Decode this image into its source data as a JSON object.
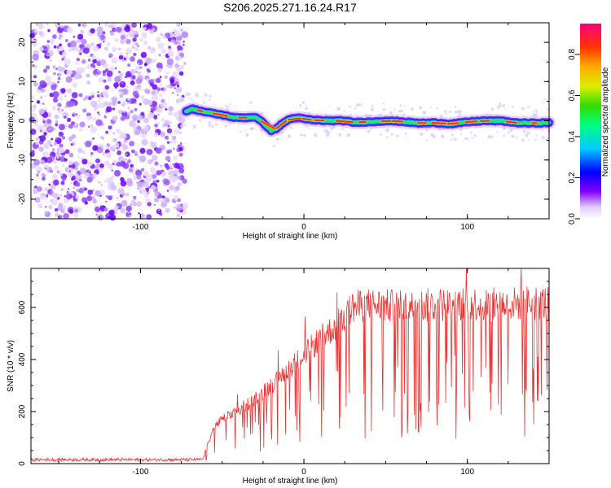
{
  "title": "S206.2025.271.16.24.R17",
  "chart_data": [
    {
      "type": "heatmap",
      "name": "spectrogram",
      "xlabel": "Height of straight line (km)",
      "ylabel": "Frequency (Hz)",
      "xlim": [
        -167,
        150
      ],
      "ylim": [
        -25,
        25
      ],
      "xticks": [
        -100,
        0,
        100
      ],
      "yticks": [
        -20,
        -10,
        0,
        10,
        20
      ],
      "noise_region_x": [
        -167,
        -72
      ],
      "tone_profile": {
        "x": [
          -72,
          -68,
          -60,
          -50,
          -42,
          -35,
          -30,
          -25,
          -20,
          -17,
          -14,
          -10,
          -5,
          0,
          5,
          15,
          25,
          30,
          40,
          50,
          60,
          70,
          80,
          90,
          100,
          110,
          120,
          130,
          140,
          150
        ],
        "freq": [
          2.5,
          3,
          2.2,
          1.5,
          0.8,
          0.8,
          1,
          -0.5,
          -2.5,
          -2,
          -1,
          0.2,
          0.8,
          0.5,
          0.2,
          0,
          0,
          -0.4,
          -0.3,
          0,
          -0.2,
          -0.6,
          -0.5,
          -0.8,
          -0.3,
          0,
          0,
          -0.5,
          -0.6,
          -0.5
        ]
      },
      "colorbar": {
        "label": "Normalized spectral amplitude",
        "range": [
          0,
          0.95
        ],
        "ticks": [
          0.0,
          0.2,
          0.4,
          0.6,
          0.8
        ]
      }
    },
    {
      "type": "line",
      "name": "snr",
      "xlabel": "Height of straight line (km)",
      "ylabel": "SNR (10 * v/v)",
      "xlim": [
        -167,
        150
      ],
      "ylim": [
        0,
        750
      ],
      "xticks": [
        -100,
        0,
        100
      ],
      "yticks": [
        0,
        200,
        400,
        600
      ],
      "color": "#ee3333",
      "envelope": {
        "x": [
          -167,
          -70,
          -62,
          -55,
          -50,
          -40,
          -30,
          -20,
          -10,
          0,
          10,
          20,
          30,
          40,
          60,
          80,
          100,
          120,
          140,
          150
        ],
        "y": [
          15,
          15,
          16,
          140,
          170,
          205,
          250,
          300,
          360,
          420,
          480,
          530,
          600,
          610,
          600,
          610,
          615,
          610,
          620,
          615
        ]
      }
    }
  ]
}
